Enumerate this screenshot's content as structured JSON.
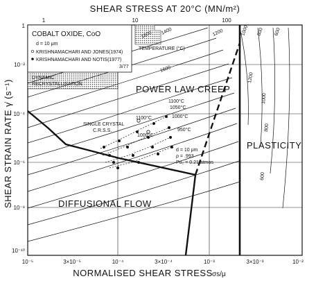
{
  "top_axis": {
    "title": "SHEAR STRESS AT 20°C (MN/m²)",
    "ticks": [
      "1",
      "10",
      "100"
    ]
  },
  "bottom_axis": {
    "title": "NORMALISED SHEAR STRESS",
    "variable": "σs/μ",
    "ticks": [
      "10⁻⁵",
      "3×10⁻⁵",
      "10⁻⁴",
      "3×10⁻⁴",
      "10⁻³",
      "3×10⁻³",
      "10⁻²"
    ]
  },
  "left_axis": {
    "title": "SHEAR STRAIN RATE γ̇ (s⁻¹)",
    "ticks": [
      "1",
      "10⁻²",
      "10⁻⁴",
      "10⁻⁶",
      "10⁻⁸",
      "10⁻¹⁰"
    ]
  },
  "material": {
    "title": "COBALT OXIDE, CoO",
    "grain_size": "d = 10 μm",
    "legend": [
      "KRISHNAMACHARI AND JONES(1974)",
      "KRISHNAMACHARI AND NOTIS(1977)"
    ],
    "code": "3/77"
  },
  "fields": {
    "dynamic_recrystallisation": [
      "DYNAMIC",
      "RECRYSTALLISATION"
    ],
    "temperature": "TEMPERATURE (°C)",
    "power_law_creep": "POWER LAW CREEP",
    "diffusional_flow": "DIFFUSIONAL FLOW",
    "plasticity": "PLASTICITY",
    "single_crystal": [
      "SINGLE CRYSTAL",
      "C.R.S.S."
    ]
  },
  "contour_labels": [
    "1600",
    "1400",
    "1200",
    "1000",
    "800",
    "600",
    "1600",
    "1200",
    "1000",
    "800",
    "600"
  ],
  "data_temps": [
    "1100°C",
    "1050°C",
    "1000°C",
    "950°C",
    "1100°C",
    "1000°C"
  ],
  "conditions": [
    "d = 10 μm",
    "ρ = .993",
    "Po₂ = 0.21 atmos"
  ]
}
